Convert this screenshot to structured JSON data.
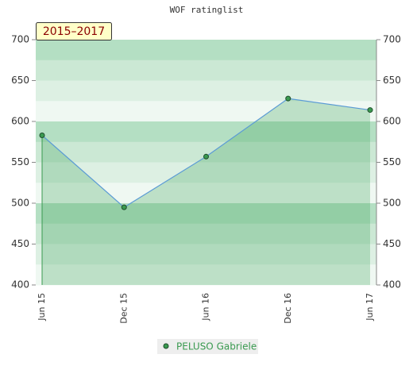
{
  "chart_data": {
    "type": "line",
    "title": "WOF ratinglist",
    "badge": "2015–2017",
    "categories": [
      "Jun 15",
      "Dec 15",
      "Jun 16",
      "Dec 16",
      "Jun 17"
    ],
    "series": [
      {
        "name": "PELUSO Gabriele",
        "color": "#3a9a50",
        "line_color": "#5b9bd5",
        "values": [
          583,
          495,
          557,
          628,
          614
        ]
      }
    ],
    "ylim": [
      400,
      700
    ],
    "yticks": [
      400,
      450,
      500,
      550,
      600,
      650,
      700
    ],
    "y2lim": [
      400,
      700
    ],
    "y2ticks": [
      400,
      450,
      500,
      550,
      600,
      650,
      700
    ]
  }
}
